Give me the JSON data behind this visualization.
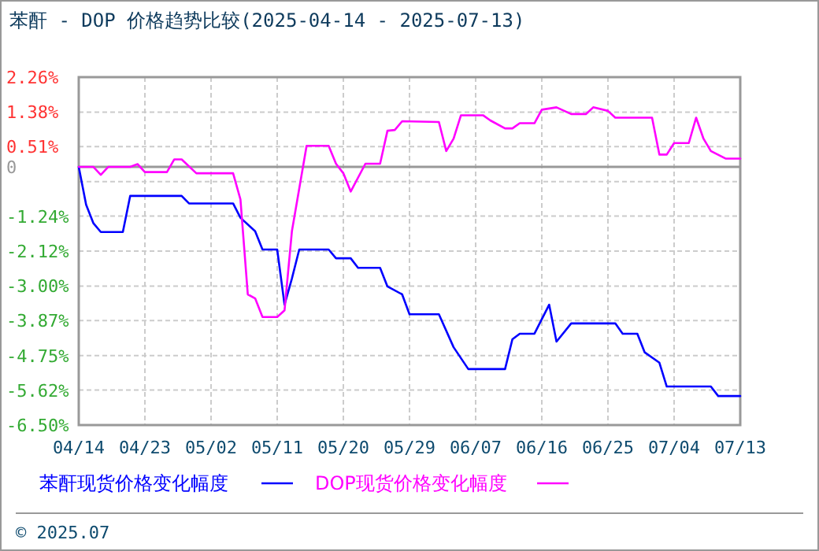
{
  "chart_data": {
    "type": "line",
    "title": "苯酐 - DOP 价格趋势比较(2025-04-14 - 2025-07-13)",
    "xlim": [
      "--04-14",
      "--07-13"
    ],
    "xticks": [
      {
        "value": "--04-14",
        "label": "04/14"
      },
      {
        "value": "--04-23",
        "label": "04/23"
      },
      {
        "value": "--05-02",
        "label": "05/02"
      },
      {
        "value": "--05-11",
        "label": "05/11"
      },
      {
        "value": "--05-20",
        "label": "05/20"
      },
      {
        "value": "--05-29",
        "label": "05/29"
      },
      {
        "value": "--06-07",
        "label": "06/07"
      },
      {
        "value": "--06-16",
        "label": "06/16"
      },
      {
        "value": "--06-25",
        "label": "06/25"
      },
      {
        "value": "--07-04",
        "label": "07/04"
      },
      {
        "value": "--07-13",
        "label": "07/13"
      }
    ],
    "ylim": [
      -6.5,
      2.26
    ],
    "yticks": [
      {
        "value": 2.26,
        "label": "2.26%"
      },
      {
        "value": 1.38,
        "label": "1.38%"
      },
      {
        "value": 0.51,
        "label": "0.51%"
      },
      0,
      {
        "value": -0.37,
        "label": null
      },
      {
        "value": -1.24,
        "label": "-1.24%"
      },
      {
        "value": -2.12,
        "label": "-2.12%"
      },
      {
        "value": -3.0,
        "label": "-3.00%"
      },
      {
        "value": -3.87,
        "label": "-3.87%"
      },
      {
        "value": -4.75,
        "label": "-4.75%"
      },
      {
        "value": -5.62,
        "label": "-5.62%"
      },
      {
        "value": -6.5,
        "label": "-6.50%"
      }
    ],
    "grid": true,
    "legend": "bottom",
    "marker": "none",
    "line_style": "solid",
    "ref_lines": [
      {
        "axis": "y",
        "value": 0,
        "color": "#999999"
      }
    ],
    "annotations": [
      "© 2025.07"
    ],
    "series": [
      {
        "name": "苯酐现货价格变化幅度",
        "color": "#0000ff",
        "x": [
          "--04-14",
          "--04-15",
          "--04-16",
          "--04-17",
          "--04-20",
          "--04-21",
          "--04-28",
          "--04-29",
          "--05-05",
          "--05-06",
          "--05-08",
          "--05-09",
          "--05-11",
          "--05-12",
          "--05-13",
          "--05-14",
          "--05-18",
          "--05-19",
          "--05-21",
          "--05-22",
          "--05-25",
          "--05-26",
          "--05-28",
          "--05-29",
          "--06-02",
          "--06-04",
          "--06-06",
          "--06-11",
          "--06-12",
          "--06-13",
          "--06-15",
          "--06-17",
          "--06-18",
          "--06-20",
          "--06-26",
          "--06-27",
          "--06-29",
          "--06-30",
          "--07-02",
          "--07-03",
          "--07-09",
          "--07-10",
          "--07-13"
        ],
        "values": [
          0,
          -0.95,
          -1.42,
          -1.64,
          -1.64,
          -0.73,
          -0.73,
          -0.92,
          -0.92,
          -1.28,
          -1.62,
          -2.08,
          -2.08,
          -3.47,
          -2.81,
          -2.08,
          -2.08,
          -2.3,
          -2.3,
          -2.54,
          -2.54,
          -3.01,
          -3.21,
          -3.71,
          -3.71,
          -4.54,
          -5.09,
          -5.09,
          -4.34,
          -4.2,
          -4.2,
          -3.47,
          -4.4,
          -3.94,
          -3.94,
          -4.2,
          -4.2,
          -4.67,
          -4.93,
          -5.53,
          -5.53,
          -5.77,
          -5.77
        ]
      },
      {
        "name": "DOP现货价格变化幅度",
        "color": "#ff00ff",
        "x": [
          "--04-14",
          "--04-16",
          "--04-17",
          "--04-18",
          "--04-21",
          "--04-22",
          "--04-23",
          "--04-26",
          "--04-27",
          "--04-28",
          "--04-30",
          "--05-05",
          "--05-06",
          "--05-07",
          "--05-08",
          "--05-09",
          "--05-11",
          "--05-12",
          "--05-13",
          "--05-15",
          "--05-18",
          "--05-19",
          "--05-20",
          "--05-21",
          "--05-23",
          "--05-25",
          "--05-26",
          "--05-27",
          "--05-28",
          "--06-02",
          "--06-03",
          "--06-04",
          "--06-05",
          "--06-08",
          "--06-09",
          "--06-11",
          "--06-12",
          "--06-13",
          "--06-15",
          "--06-16",
          "--06-18",
          "--06-20",
          "--06-22",
          "--06-23",
          "--06-25",
          "--06-26",
          "--07-01",
          "--07-02",
          "--07-03",
          "--07-04",
          "--07-06",
          "--07-07",
          "--07-08",
          "--07-09",
          "--07-11",
          "--07-13"
        ],
        "values": [
          0,
          0,
          -0.2,
          0,
          0,
          0.07,
          -0.13,
          -0.13,
          0.19,
          0.19,
          -0.16,
          -0.16,
          -0.82,
          -3.21,
          -3.31,
          -3.78,
          -3.78,
          -3.61,
          -1.62,
          0.53,
          0.53,
          0.08,
          -0.16,
          -0.62,
          0.08,
          0.08,
          0.91,
          0.93,
          1.15,
          1.13,
          0.4,
          0.71,
          1.3,
          1.3,
          1.17,
          0.97,
          0.97,
          1.1,
          1.1,
          1.44,
          1.5,
          1.33,
          1.33,
          1.5,
          1.41,
          1.24,
          1.24,
          0.31,
          0.31,
          0.6,
          0.6,
          1.24,
          0.71,
          0.4,
          0.21,
          0.21
        ]
      }
    ]
  }
}
